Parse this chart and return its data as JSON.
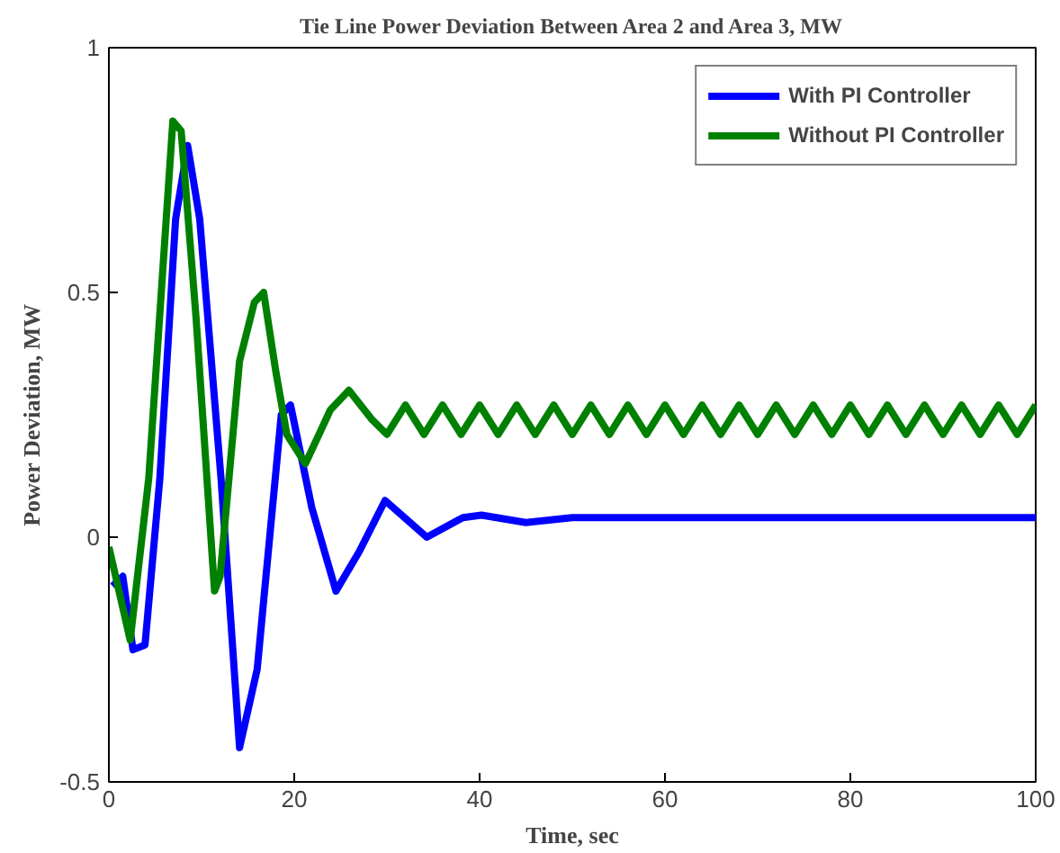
{
  "chart_data": {
    "type": "line",
    "title": "Tie Line Power Deviation Between Area 2 and Area 3, MW",
    "xlabel": "Time, sec",
    "ylabel": "Power Deviation, MW",
    "xlim": [
      0,
      100
    ],
    "ylim": [
      -0.5,
      1
    ],
    "xticks": [
      0,
      20,
      40,
      60,
      80,
      100
    ],
    "yticks": [
      {
        "value": -0.5,
        "label": "-0.5"
      },
      0,
      0.5,
      1
    ],
    "grid": false,
    "legend": "top right",
    "line_style": "solid",
    "marker": "none",
    "series": [
      {
        "name": "With PI Controller",
        "color": "#0000ff",
        "x": [
          0.4,
          1.5,
          2.6,
          3.9,
          5.5,
          7.2,
          8.5,
          9.8,
          12.1,
          14.1,
          16.0,
          18.6,
          19.6,
          21.9,
          24.5,
          27,
          29.8,
          34.3,
          38.2,
          40.2,
          45,
          50,
          60,
          70,
          80,
          90,
          100
        ],
        "values": [
          -0.1,
          -0.08,
          -0.23,
          -0.22,
          0.12,
          0.65,
          0.8,
          0.65,
          0.12,
          -0.43,
          -0.27,
          0.25,
          0.27,
          0.06,
          -0.11,
          -0.03,
          0.075,
          0.0,
          0.04,
          0.045,
          0.03,
          0.04,
          0.04,
          0.04,
          0.04,
          0.04,
          0.04
        ]
      },
      {
        "name": "Without PI Controller",
        "color": "#008000",
        "x": [
          0,
          2.3,
          4.3,
          6.9,
          7.8,
          9.4,
          11.4,
          12.0,
          14.1,
          15.7,
          16.7,
          18,
          19.2,
          21.2,
          23.9,
          25.9,
          28.4,
          30,
          32,
          34,
          36,
          38,
          40,
          42,
          44,
          46,
          48,
          50,
          52,
          54,
          56,
          58,
          60,
          62,
          64,
          66,
          68,
          70,
          72,
          74,
          76,
          78,
          80,
          82,
          84,
          86,
          88,
          90,
          92,
          94,
          96,
          98,
          100
        ],
        "values": [
          -0.02,
          -0.21,
          0.12,
          0.85,
          0.83,
          0.45,
          -0.11,
          -0.08,
          0.36,
          0.48,
          0.5,
          0.34,
          0.21,
          0.15,
          0.26,
          0.3,
          0.24,
          0.21,
          0.27,
          0.21,
          0.27,
          0.21,
          0.27,
          0.21,
          0.27,
          0.21,
          0.27,
          0.21,
          0.27,
          0.21,
          0.27,
          0.21,
          0.27,
          0.21,
          0.27,
          0.21,
          0.27,
          0.21,
          0.27,
          0.21,
          0.27,
          0.21,
          0.27,
          0.21,
          0.27,
          0.21,
          0.27,
          0.21,
          0.27,
          0.21,
          0.27,
          0.21,
          0.27
        ]
      }
    ]
  }
}
